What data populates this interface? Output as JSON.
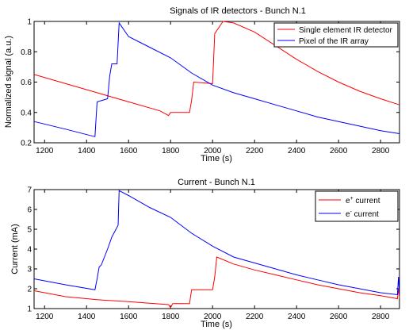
{
  "chart_data": [
    {
      "type": "line",
      "title": "Signals of IR detectors - Bunch N.1",
      "xlabel": "Time (s)",
      "ylabel": "Normalized signal (a.u.)",
      "xlim": [
        1150,
        2890
      ],
      "ylim": [
        0.2,
        1.0
      ],
      "xticks": [
        1200,
        1400,
        1600,
        1800,
        2000,
        2200,
        2400,
        2600,
        2800
      ],
      "yticks": [
        0.2,
        0.4,
        0.6,
        0.8,
        1
      ],
      "legend_position": "top-right",
      "series": [
        {
          "name": "Single element IR detector",
          "color": "#ff0000",
          "x": [
            1150,
            1300,
            1450,
            1600,
            1750,
            1790,
            1800,
            1890,
            1900,
            1910,
            2000,
            2010,
            2050,
            2100,
            2200,
            2300,
            2400,
            2500,
            2600,
            2700,
            2800,
            2890
          ],
          "y": [
            0.65,
            0.59,
            0.53,
            0.47,
            0.41,
            0.38,
            0.4,
            0.4,
            0.48,
            0.6,
            0.59,
            0.92,
            1.0,
            0.99,
            0.93,
            0.84,
            0.75,
            0.67,
            0.6,
            0.54,
            0.49,
            0.45
          ]
        },
        {
          "name": "Pixel of the IR array",
          "color": "#0000ff",
          "x": [
            1150,
            1300,
            1440,
            1450,
            1500,
            1510,
            1520,
            1545,
            1555,
            1560,
            1600,
            1700,
            1800,
            1900,
            2000,
            2100,
            2200,
            2300,
            2400,
            2500,
            2600,
            2700,
            2800,
            2890
          ],
          "y": [
            0.34,
            0.29,
            0.24,
            0.47,
            0.49,
            0.64,
            0.72,
            0.72,
            0.99,
            0.98,
            0.9,
            0.83,
            0.76,
            0.66,
            0.58,
            0.53,
            0.49,
            0.45,
            0.41,
            0.37,
            0.34,
            0.31,
            0.28,
            0.26
          ]
        }
      ]
    },
    {
      "type": "line",
      "title": "Current - Bunch N.1",
      "xlabel": "Time (s)",
      "ylabel": "Current (mA)",
      "xlim": [
        1150,
        2890
      ],
      "ylim": [
        1,
        7
      ],
      "xticks": [
        1200,
        1400,
        1600,
        1800,
        2000,
        2200,
        2400,
        2600,
        2800
      ],
      "yticks": [
        1,
        2,
        3,
        4,
        5,
        6,
        7
      ],
      "legend_position": "top-right",
      "series": [
        {
          "name": "e⁺ current",
          "legend_base": "e",
          "legend_sup": "+",
          "legend_rest": " current",
          "color": "#ff0000",
          "x": [
            1150,
            1300,
            1450,
            1600,
            1790,
            1800,
            1810,
            1890,
            1900,
            2000,
            2010,
            2020,
            2100,
            2200,
            2300,
            2400,
            2500,
            2600,
            2700,
            2800,
            2880,
            2885,
            2890
          ],
          "y": [
            1.9,
            1.6,
            1.45,
            1.35,
            1.2,
            1.05,
            1.25,
            1.25,
            1.95,
            1.95,
            2.6,
            3.6,
            3.25,
            2.95,
            2.7,
            2.45,
            2.2,
            2.0,
            1.8,
            1.65,
            1.5,
            2.0,
            1.55
          ]
        },
        {
          "name": "e⁻ current",
          "legend_base": "e",
          "legend_sup": "-",
          "legend_rest": " current",
          "color": "#0000ff",
          "x": [
            1150,
            1300,
            1440,
            1450,
            1460,
            1470,
            1500,
            1520,
            1550,
            1555,
            1600,
            1700,
            1800,
            1900,
            2000,
            2100,
            2200,
            2300,
            2400,
            2500,
            2600,
            2700,
            2800,
            2880,
            2885,
            2890
          ],
          "y": [
            2.5,
            2.2,
            1.95,
            2.5,
            3.1,
            3.2,
            4.0,
            4.6,
            5.2,
            6.95,
            6.7,
            6.1,
            5.6,
            4.8,
            4.15,
            3.6,
            3.3,
            3.0,
            2.7,
            2.45,
            2.2,
            2.0,
            1.8,
            1.7,
            2.6,
            1.7
          ]
        }
      ]
    }
  ]
}
